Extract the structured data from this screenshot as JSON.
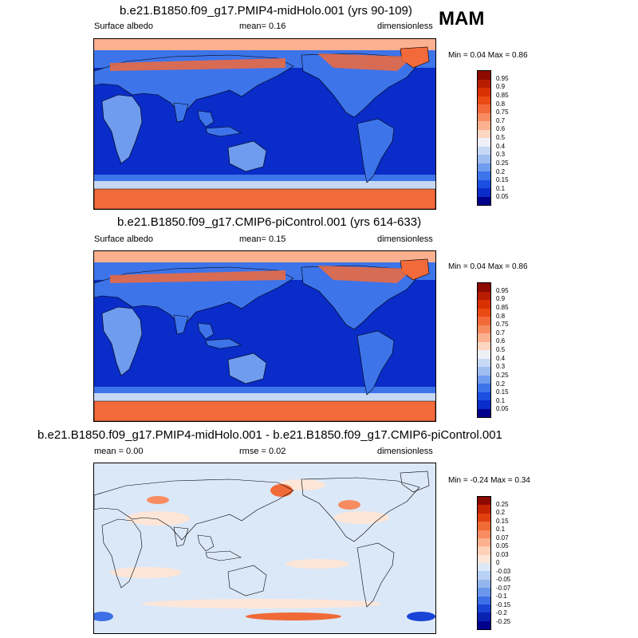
{
  "season": "MAM",
  "panels": [
    {
      "title": "b.e21.B1850.f09_g17.PMIP4-midHolo.001 (yrs 90-109)",
      "left_label": "Surface albedo",
      "mid_label": "mean=   0.16",
      "right_label": "dimensionless",
      "minmax": "Min =   0.04 Max =   0.86",
      "map_kind": "albedo"
    },
    {
      "title": "b.e21.B1850.f09_g17.CMIP6-piControl.001 (yrs 614-633)",
      "left_label": "Surface albedo",
      "mid_label": "mean=   0.15",
      "right_label": "dimensionless",
      "minmax": "Min =   0.04 Max =   0.86",
      "map_kind": "albedo"
    },
    {
      "title": "b.e21.B1850.f09_g17.PMIP4-midHolo.001 - b.e21.B1850.f09_g17.CMIP6-piControl.001",
      "left_label": "mean =   0.00",
      "mid_label": "rmse =  0.02",
      "right_label": "dimensionless",
      "minmax": "Min =  -0.24 Max =   0.34",
      "map_kind": "diff"
    }
  ],
  "albedo_colorbar": {
    "labels": [
      "0.95",
      "0.9",
      "0.85",
      "0.8",
      "0.75",
      "0.7",
      "0.6",
      "0.5",
      "0.4",
      "0.3",
      "0.25",
      "0.2",
      "0.15",
      "0.1",
      "0.05"
    ],
    "colors": [
      "#8c0a00",
      "#b81c00",
      "#d83000",
      "#ea4a14",
      "#f26a3a",
      "#f78c60",
      "#fbb090",
      "#fdd5c0",
      "#eef0f6",
      "#c7d8f5",
      "#9ebdf0",
      "#6f9cee",
      "#3d74ea",
      "#1a4fe0",
      "#0a2cc8",
      "#00008a"
    ]
  },
  "diff_colorbar": {
    "labels": [
      "0.25",
      "0.2",
      "0.15",
      "0.1",
      "0.07",
      "0.05",
      "0.03",
      "0",
      "-0.03",
      "-0.05",
      "-0.07",
      "-0.1",
      "-0.15",
      "-0.2",
      "-0.25"
    ],
    "colors": [
      "#8c0a00",
      "#c42400",
      "#e04010",
      "#f06a38",
      "#f78c60",
      "#fbb090",
      "#fdd0b8",
      "#fde6d8",
      "#dbe8f8",
      "#b8d0f4",
      "#94b6ef",
      "#6a96ec",
      "#3d6fe6",
      "#1a44d6",
      "#0a22b0",
      "#00008a"
    ]
  }
}
